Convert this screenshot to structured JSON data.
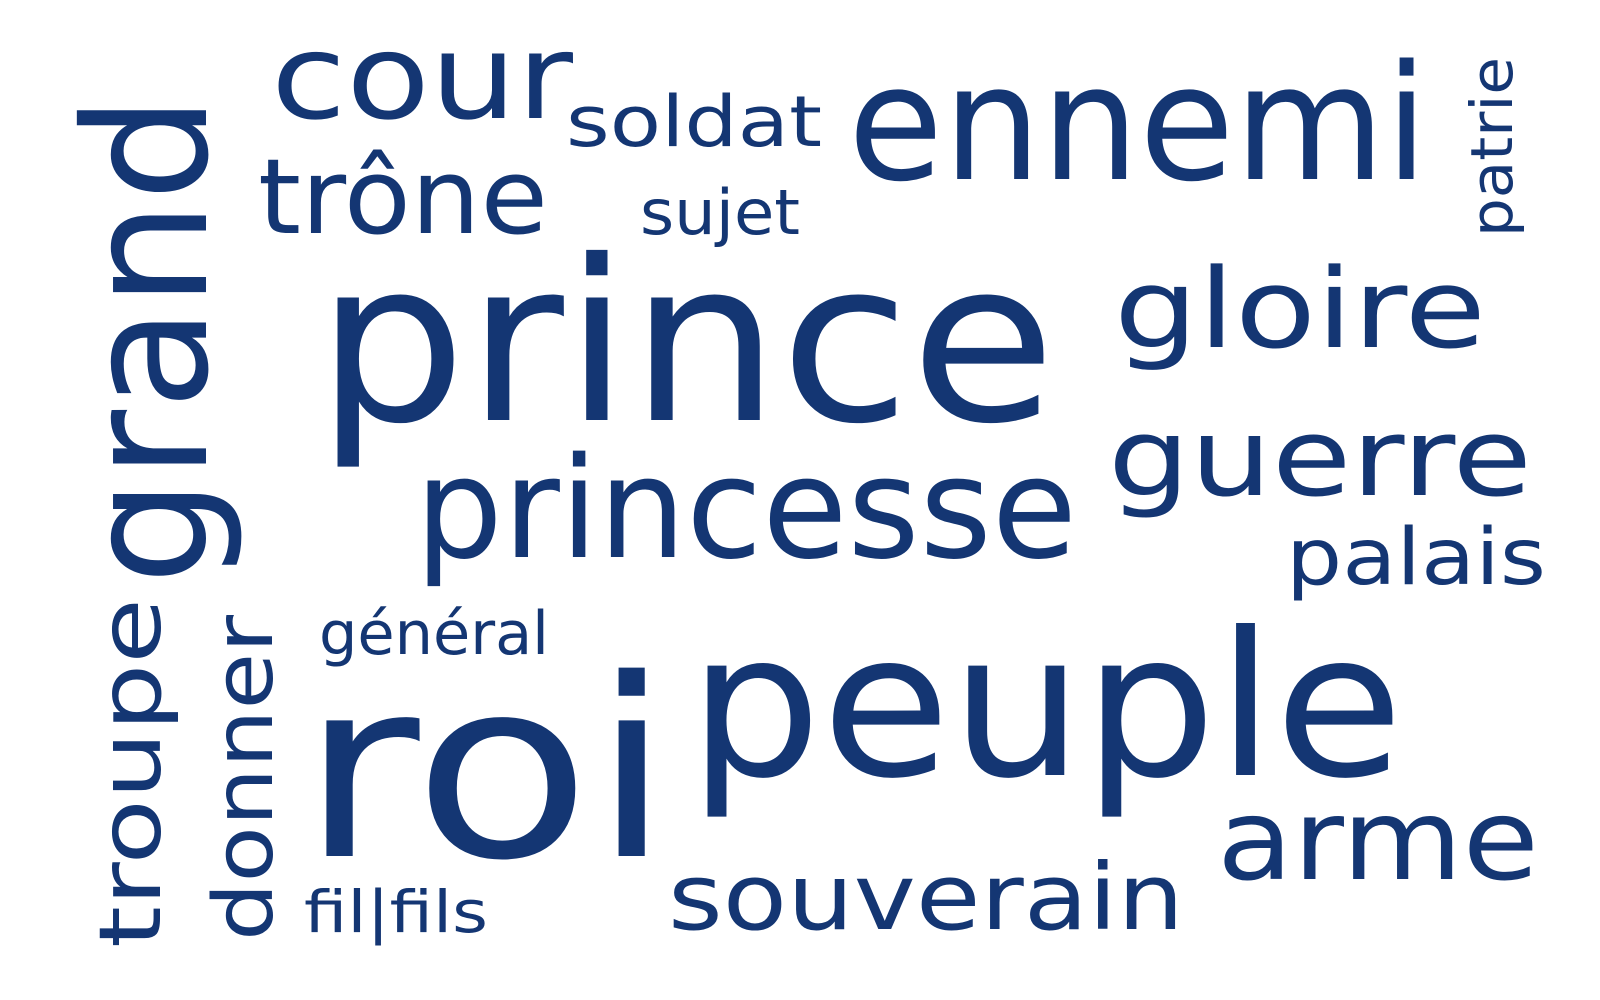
{
  "cloud": {
    "color": "#143673",
    "words": [
      "prince",
      "roi",
      "peuple",
      "princesse",
      "grand",
      "ennemi",
      "gloire",
      "guerre",
      "cour",
      "trône",
      "arme",
      "souverain",
      "troupe",
      "donner",
      "palais",
      "soldat",
      "sujet",
      "patrie",
      "général",
      "fil|fils"
    ]
  }
}
